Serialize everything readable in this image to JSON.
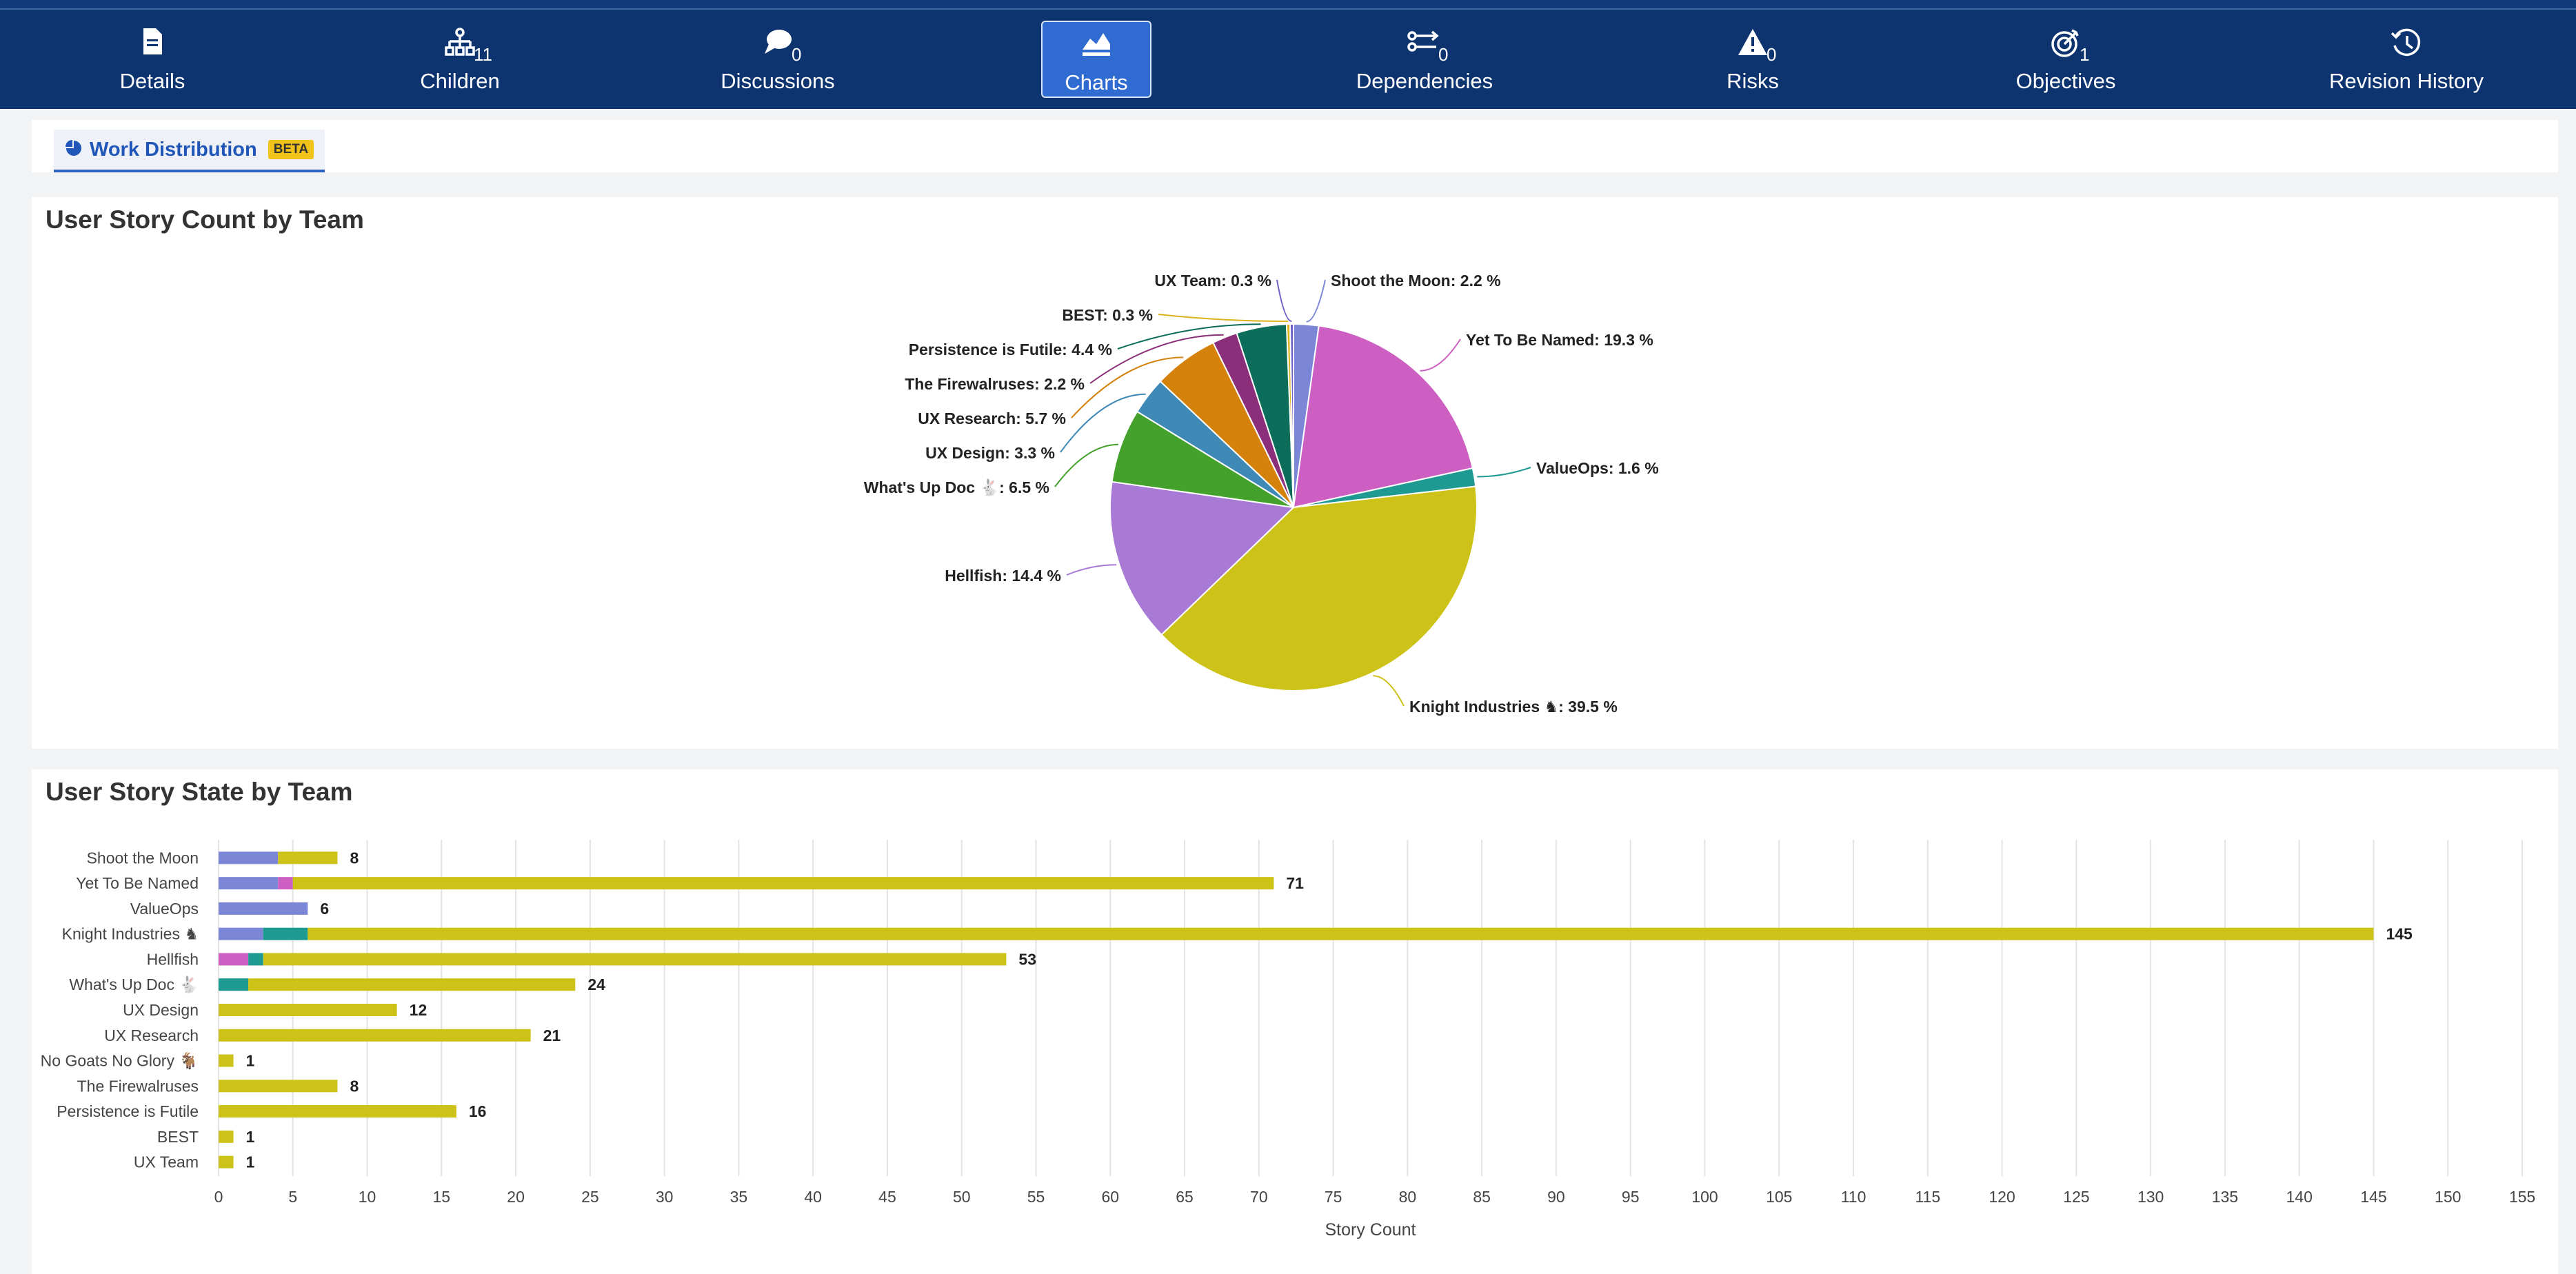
{
  "nav": {
    "tabs": [
      {
        "label": "Details",
        "count": "",
        "icon": "document-icon"
      },
      {
        "label": "Children",
        "count": "11",
        "icon": "hierarchy-icon"
      },
      {
        "label": "Discussions",
        "count": "0",
        "icon": "chat-bubble-icon"
      },
      {
        "label": "Charts",
        "count": "",
        "icon": "chart-icon"
      },
      {
        "label": "Dependencies",
        "count": "0",
        "icon": "dependency-icon"
      },
      {
        "label": "Risks",
        "count": "0",
        "icon": "warning-icon"
      },
      {
        "label": "Objectives",
        "count": "1",
        "icon": "target-icon"
      },
      {
        "label": "Revision History",
        "count": "",
        "icon": "history-icon"
      }
    ],
    "active": "Charts"
  },
  "subtab": {
    "label": "Work Distribution",
    "badge": "BETA",
    "icon": "pie-chart-icon"
  },
  "colors": {
    "nav_bg": "#0e3470",
    "active_tab": "#2f6bd0",
    "periwinkle": "#7b86d6",
    "magenta": "#cd5fc2",
    "teal": "#1f9a92",
    "olive_yellow": "#cdc218",
    "purple": "#a979d6",
    "green": "#44a12b",
    "steel_blue": "#3e89b5",
    "orange": "#d4820b",
    "plum": "#8b2f7b",
    "dark_teal": "#0b6d5a"
  },
  "chart_data": [
    {
      "type": "pie",
      "title": "User Story Count by Team",
      "slices": [
        {
          "label": "Shoot the Moon: 2.2 %",
          "value": 2.2,
          "color": "#7b86d6"
        },
        {
          "label": "Yet To Be Named: 19.3 %",
          "value": 19.3,
          "color": "#cd5fc2"
        },
        {
          "label": "ValueOps: 1.6 %",
          "value": 1.6,
          "color": "#1f9a92"
        },
        {
          "label": "Knight Industries ♞: 39.5 %",
          "value": 39.5,
          "color": "#cdc218"
        },
        {
          "label": "Hellfish: 14.4 %",
          "value": 14.4,
          "color": "#a979d6"
        },
        {
          "label": "What's Up Doc 🐇: 6.5 %",
          "value": 6.5,
          "color": "#44a12b"
        },
        {
          "label": "UX Design: 3.3 %",
          "value": 3.3,
          "color": "#3e89b5"
        },
        {
          "label": "UX Research: 5.7 %",
          "value": 5.7,
          "color": "#d4820b"
        },
        {
          "label": "The Firewalruses: 2.2 %",
          "value": 2.2,
          "color": "#8b2f7b"
        },
        {
          "label": "Persistence is Futile: 4.4 %",
          "value": 4.4,
          "color": "#0b6d5a"
        },
        {
          "label": "BEST: 0.3 %",
          "value": 0.3,
          "color": "#d9b21c"
        },
        {
          "label": "UX Team: 0.3 %",
          "value": 0.3,
          "color": "#6b5fc7"
        }
      ]
    },
    {
      "type": "bar",
      "orientation": "horizontal",
      "stacked": true,
      "title": "User Story State by Team",
      "xlabel": "Story Count",
      "xlim": [
        0,
        155
      ],
      "xticks": [
        0,
        5,
        10,
        15,
        20,
        25,
        30,
        35,
        40,
        45,
        50,
        55,
        60,
        65,
        70,
        75,
        80,
        85,
        90,
        95,
        100,
        105,
        110,
        115,
        120,
        125,
        130,
        135,
        140,
        145,
        150,
        155
      ],
      "grid": true,
      "categories": [
        "Shoot the Moon",
        "Yet To Be Named",
        "ValueOps",
        "Knight Industries ♞",
        "Hellfish",
        "What's Up Doc 🐇",
        "UX Design",
        "UX Research",
        "No Goats No Glory 🐐",
        "The Firewalruses",
        "Persistence is Futile",
        "BEST",
        "UX Team"
      ],
      "series": [
        {
          "color": "#7b86d6",
          "values": [
            4,
            4,
            6,
            3,
            0,
            0,
            0,
            0,
            0,
            0,
            0,
            0,
            0
          ]
        },
        {
          "color": "#cd5fc2",
          "values": [
            0,
            1,
            0,
            0,
            2,
            0,
            0,
            0,
            0,
            0,
            0,
            0,
            0
          ]
        },
        {
          "color": "#1f9a92",
          "values": [
            0,
            0,
            0,
            3,
            1,
            2,
            0,
            0,
            0,
            0,
            0,
            0,
            0
          ]
        },
        {
          "color": "#cdc218",
          "values": [
            4,
            66,
            0,
            139,
            50,
            22,
            12,
            21,
            1,
            8,
            16,
            1,
            1
          ]
        }
      ],
      "totals": [
        8,
        71,
        6,
        145,
        53,
        24,
        12,
        21,
        1,
        8,
        16,
        1,
        1
      ]
    }
  ]
}
